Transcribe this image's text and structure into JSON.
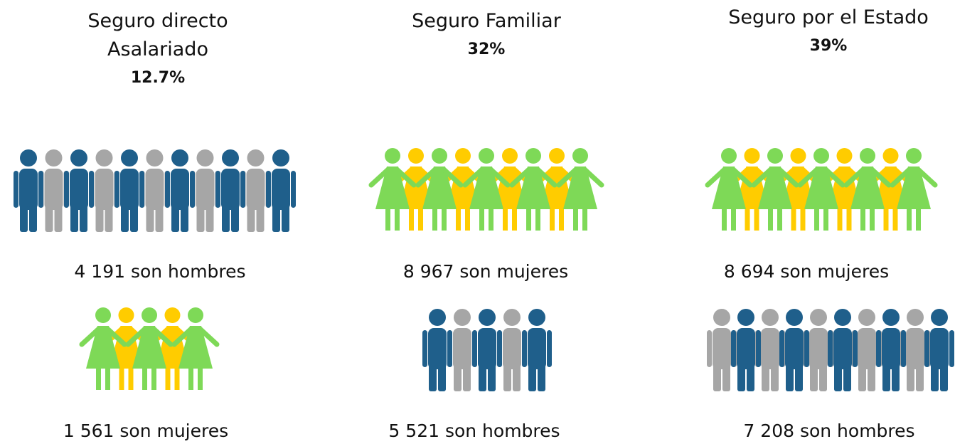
{
  "columns": [
    {
      "title": "Seguro directo Asalariado",
      "percent": "12.7%",
      "groups": [
        {
          "label": "4 191 son hombres"
        },
        {
          "label": "1 561 son mujeres"
        }
      ]
    },
    {
      "title": "Seguro Familiar",
      "percent": "32%",
      "groups": [
        {
          "label": "8 967 son mujeres"
        },
        {
          "label": "5 521 son hombres"
        }
      ]
    },
    {
      "title": "Seguro por el Estado",
      "percent": "39%",
      "groups": [
        {
          "label": "8 694 son mujeres"
        },
        {
          "label": "7 208 son hombres"
        }
      ]
    }
  ]
}
